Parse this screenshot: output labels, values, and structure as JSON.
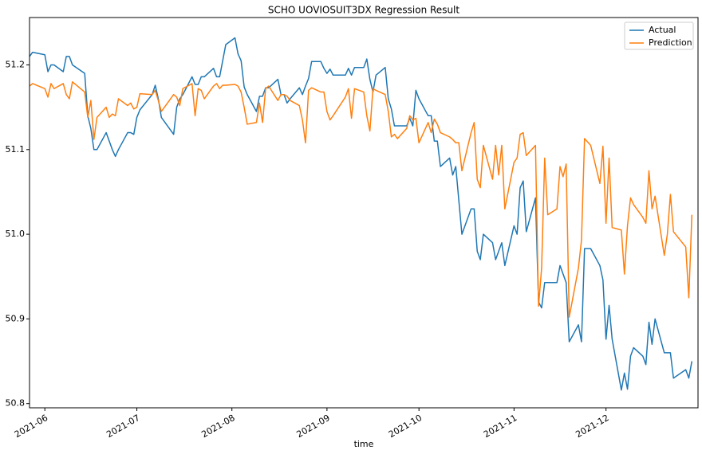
{
  "chart_data": {
    "type": "line",
    "title": "SCHO UOVIOSUIT3DX Regression Result",
    "xlabel": "time",
    "x": [
      "2021-05-27",
      "2021-05-28",
      "2021-06-01",
      "2021-06-02",
      "2021-06-03",
      "2021-06-04",
      "2021-06-07",
      "2021-06-08",
      "2021-06-09",
      "2021-06-10",
      "2021-06-14",
      "2021-06-15",
      "2021-06-16",
      "2021-06-17",
      "2021-06-18",
      "2021-06-21",
      "2021-06-22",
      "2021-06-23",
      "2021-06-24",
      "2021-06-25",
      "2021-06-28",
      "2021-06-29",
      "2021-06-30",
      "2021-07-01",
      "2021-07-02",
      "2021-07-06",
      "2021-07-07",
      "2021-07-08",
      "2021-07-09",
      "2021-07-13",
      "2021-07-14",
      "2021-07-15",
      "2021-07-16",
      "2021-07-19",
      "2021-07-20",
      "2021-07-21",
      "2021-07-22",
      "2021-07-23",
      "2021-07-26",
      "2021-07-27",
      "2021-07-28",
      "2021-07-29",
      "2021-07-30",
      "2021-08-02",
      "2021-08-03",
      "2021-08-04",
      "2021-08-05",
      "2021-08-06",
      "2021-08-09",
      "2021-08-10",
      "2021-08-11",
      "2021-08-12",
      "2021-08-13",
      "2021-08-16",
      "2021-08-17",
      "2021-08-18",
      "2021-08-19",
      "2021-08-20",
      "2021-08-23",
      "2021-08-24",
      "2021-08-25",
      "2021-08-26",
      "2021-08-27",
      "2021-08-30",
      "2021-08-31",
      "2021-09-01",
      "2021-09-02",
      "2021-09-03",
      "2021-09-07",
      "2021-09-08",
      "2021-09-09",
      "2021-09-10",
      "2021-09-13",
      "2021-09-14",
      "2021-09-15",
      "2021-09-16",
      "2021-09-17",
      "2021-09-20",
      "2021-09-21",
      "2021-09-22",
      "2021-09-23",
      "2021-09-24",
      "2021-09-27",
      "2021-09-28",
      "2021-09-29",
      "2021-09-30",
      "2021-10-01",
      "2021-10-04",
      "2021-10-05",
      "2021-10-06",
      "2021-10-07",
      "2021-10-08",
      "2021-10-11",
      "2021-10-12",
      "2021-10-13",
      "2021-10-14",
      "2021-10-15",
      "2021-10-18",
      "2021-10-19",
      "2021-10-20",
      "2021-10-21",
      "2021-10-22",
      "2021-10-25",
      "2021-10-26",
      "2021-10-27",
      "2021-10-28",
      "2021-10-29",
      "2021-11-01",
      "2021-11-02",
      "2021-11-03",
      "2021-11-04",
      "2021-11-05",
      "2021-11-08",
      "2021-11-09",
      "2021-11-10",
      "2021-11-11",
      "2021-11-12",
      "2021-11-15",
      "2021-11-16",
      "2021-11-17",
      "2021-11-18",
      "2021-11-19",
      "2021-11-22",
      "2021-11-23",
      "2021-11-24",
      "2021-11-26",
      "2021-11-29",
      "2021-11-30",
      "2021-12-01",
      "2021-12-02",
      "2021-12-03",
      "2021-12-06",
      "2021-12-07",
      "2021-12-08",
      "2021-12-09",
      "2021-12-10",
      "2021-12-13",
      "2021-12-14",
      "2021-12-15",
      "2021-12-16",
      "2021-12-17",
      "2021-12-20",
      "2021-12-21",
      "2021-12-22",
      "2021-12-23",
      "2021-12-27",
      "2021-12-28",
      "2021-12-29"
    ],
    "series": [
      {
        "name": "Actual",
        "color": "#1f77b4",
        "values": [
          51.21,
          51.215,
          51.212,
          51.192,
          51.2,
          51.2,
          51.192,
          51.21,
          51.21,
          51.2,
          51.19,
          51.14,
          51.125,
          51.1,
          51.1,
          51.12,
          51.11,
          51.1,
          51.092,
          51.1,
          51.12,
          51.12,
          51.118,
          51.138,
          51.147,
          51.165,
          51.176,
          51.16,
          51.138,
          51.118,
          51.15,
          51.16,
          51.165,
          51.186,
          51.177,
          51.177,
          51.186,
          51.186,
          51.196,
          51.186,
          51.186,
          51.205,
          51.224,
          51.232,
          51.213,
          51.205,
          51.174,
          51.165,
          51.145,
          51.163,
          51.163,
          51.173,
          51.173,
          51.183,
          51.165,
          51.165,
          51.155,
          51.16,
          51.173,
          51.165,
          51.175,
          51.184,
          51.204,
          51.204,
          51.196,
          51.19,
          51.195,
          51.188,
          51.188,
          51.196,
          51.188,
          51.197,
          51.197,
          51.207,
          51.183,
          51.168,
          51.188,
          51.197,
          51.16,
          51.148,
          51.128,
          51.128,
          51.128,
          51.137,
          51.128,
          51.17,
          51.16,
          51.14,
          51.14,
          51.11,
          51.11,
          51.08,
          51.09,
          51.07,
          51.08,
          51.04,
          51.0,
          51.03,
          51.03,
          50.98,
          50.97,
          51.0,
          50.99,
          50.97,
          50.98,
          50.99,
          50.963,
          51.01,
          51.0,
          51.055,
          51.063,
          51.003,
          51.043,
          50.92,
          50.913,
          50.943,
          50.943,
          50.943,
          50.963,
          50.953,
          50.943,
          50.873,
          50.893,
          50.873,
          50.983,
          50.983,
          50.963,
          50.946,
          50.876,
          50.916,
          50.876,
          50.816,
          50.836,
          50.817,
          50.856,
          50.866,
          50.856,
          50.846,
          50.896,
          50.87,
          50.9,
          50.86,
          50.86,
          50.86,
          50.83,
          50.84,
          50.83,
          50.85
        ]
      },
      {
        "name": "Prediction",
        "color": "#ff7f0e",
        "values": [
          51.175,
          51.178,
          51.172,
          51.162,
          51.178,
          51.172,
          51.178,
          51.165,
          51.16,
          51.18,
          51.168,
          51.138,
          51.158,
          51.112,
          51.138,
          51.15,
          51.138,
          51.142,
          51.14,
          51.16,
          51.152,
          51.155,
          51.148,
          51.15,
          51.166,
          51.165,
          51.17,
          51.158,
          51.145,
          51.165,
          51.162,
          51.152,
          51.172,
          51.178,
          51.14,
          51.172,
          51.17,
          51.16,
          51.175,
          51.178,
          51.172,
          51.176,
          51.176,
          51.177,
          51.175,
          51.168,
          51.15,
          51.13,
          51.132,
          51.155,
          51.132,
          51.172,
          51.175,
          51.158,
          51.165,
          51.165,
          51.163,
          51.158,
          51.152,
          51.135,
          51.108,
          51.17,
          51.173,
          51.168,
          51.168,
          51.145,
          51.135,
          51.14,
          51.162,
          51.172,
          51.137,
          51.172,
          51.168,
          51.14,
          51.122,
          51.172,
          51.17,
          51.165,
          51.145,
          51.115,
          51.118,
          51.113,
          51.125,
          51.14,
          51.135,
          51.137,
          51.108,
          51.132,
          51.12,
          51.136,
          51.13,
          51.12,
          51.115,
          51.112,
          51.108,
          51.108,
          51.075,
          51.12,
          51.132,
          51.065,
          51.055,
          51.105,
          51.065,
          51.105,
          51.07,
          51.105,
          51.03,
          51.085,
          51.09,
          51.118,
          51.12,
          51.093,
          51.105,
          50.915,
          50.96,
          51.09,
          51.023,
          51.03,
          51.08,
          51.068,
          51.083,
          50.902,
          50.96,
          50.993,
          51.113,
          51.105,
          51.06,
          51.104,
          51.013,
          51.09,
          51.008,
          51.005,
          50.953,
          51.01,
          51.043,
          51.035,
          51.02,
          51.013,
          51.075,
          51.03,
          51.045,
          50.975,
          51.0,
          51.047,
          51.003,
          50.985,
          50.925,
          51.023
        ]
      }
    ],
    "xlim": [
      "2021-05-27",
      "2021-12-31"
    ],
    "xticks": [
      {
        "value": "2021-06-01",
        "label": "2021-06"
      },
      {
        "value": "2021-07-01",
        "label": "2021-07"
      },
      {
        "value": "2021-08-01",
        "label": "2021-08"
      },
      {
        "value": "2021-09-01",
        "label": "2021-09"
      },
      {
        "value": "2021-10-01",
        "label": "2021-10"
      },
      {
        "value": "2021-11-01",
        "label": "2021-11"
      },
      {
        "value": "2021-12-01",
        "label": "2021-12"
      }
    ],
    "ylim": [
      50.795,
      51.256
    ],
    "yticks": [
      50.8,
      50.9,
      {
        "value": 51,
        "label": "51.0"
      },
      51.1,
      51.2
    ],
    "grid": false,
    "legend": "upper right"
  }
}
